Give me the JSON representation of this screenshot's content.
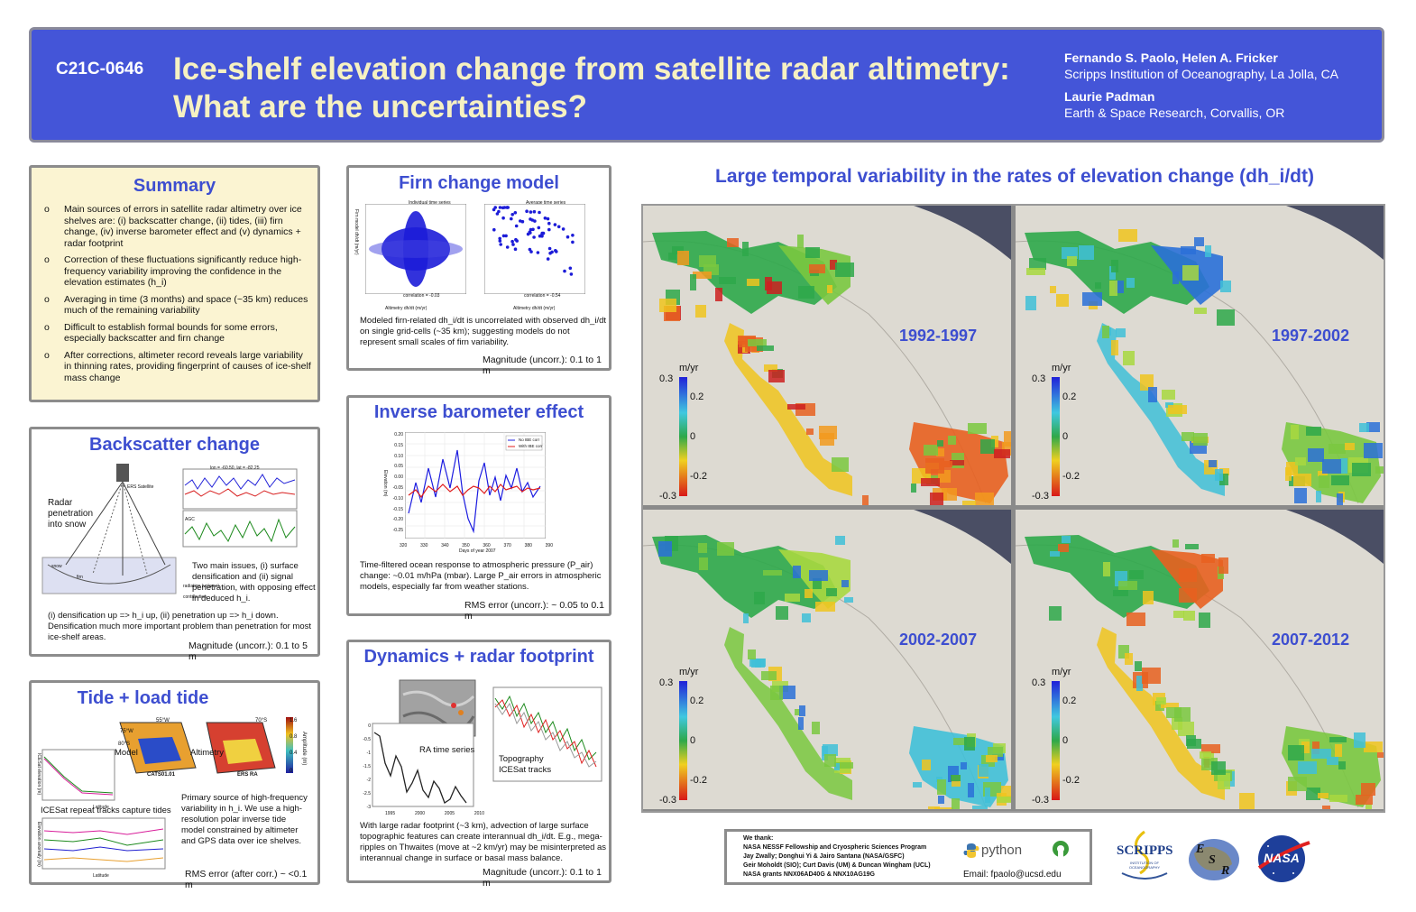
{
  "header": {
    "code": "C21C-0646",
    "title_line1": "Ice-shelf elevation change from satellite radar altimetry:",
    "title_line2": "What are the uncertainties?",
    "author1": "Fernando S. Paolo, Helen A. Fricker",
    "affil1": "Scripps Institution of Oceanography, La Jolla, CA",
    "author2": "Laurie Padman",
    "affil2": "Earth & Space Research, Corvallis, OR"
  },
  "summary": {
    "title": "Summary",
    "items": [
      "Main sources of errors in satellite radar altimetry over ice shelves are: (i) backscatter change, (ii) tides, (iii) firn change, (iv) inverse barometer effect and (v) dynamics + radar footprint",
      "Correction of these fluctuations significantly reduce high-frequency variability improving the confidence in the elevation estimates (h_i)",
      "Averaging in time (3 months) and space (~35 km) reduces much of the remaining variability",
      "Difficult to establish formal bounds for some errors, especially backscatter and firn change",
      "After corrections, altimeter record reveals large variability in thinning rates, providing fingerprint of causes of ice-shelf mass change"
    ]
  },
  "backscatter": {
    "title": "Backscatter change",
    "fig_labels": [
      "Radar",
      "penetration",
      "into snow",
      "ERS Satellite",
      "lon = -60.50, lat = -82.25",
      "AGC",
      "snow",
      "firn",
      "radiation (volume) contribution"
    ],
    "text1": "Two main issues, (i) surface densification and (ii) signal penetration, with opposing effect in deduced h_i.",
    "text2": "(i) densification up => h_i up, (ii) penetration up => h_i down. Densification much more important problem than penetration for most ice-shelf areas.",
    "magnitude": "Magnitude (uncorr.): 0.1 to 5 m"
  },
  "tide": {
    "title": "Tide + load tide",
    "fig_labels": [
      "Model",
      "Altimetry",
      "CATS01.01",
      "ERS RA",
      "55°W",
      "75°W",
      "80°S",
      "70°S",
      "Amplitude (m)",
      "ICESat elevation (m)",
      "Elevation anomaly (m)",
      "Latitude"
    ],
    "caption": "ICESat repeat tracks capture tides",
    "text": "Primary source of high-frequency variability in h_i. We use a high-resolution polar inverse tide model constrained by altimeter and GPS data over ice shelves.",
    "error": "RMS error (after corr.) ~ <0.1 m",
    "scale": [
      "1.6",
      "0.8",
      "0.4",
      "0"
    ]
  },
  "firn": {
    "title": "Firn change model",
    "left_title": "Individual time series",
    "right_title": "Average time series",
    "xlabel": "Altimetry dh/dt (m/yr)",
    "ylabel": "Firn model dh/dt (m/yr)",
    "corr_left": "correlation = -0.03",
    "corr_right": "correlation = -0.54",
    "text": "Modeled firn-related dh_i/dt is uncorrelated with observed dh_i/dt on single grid-cells (~35 km); suggesting models do not represent small scales of firn variability.",
    "magnitude": "Magnitude (uncorr.): 0.1 to 1 m"
  },
  "ib": {
    "title": "Inverse barometer effect",
    "legend": [
      "No IBE corr",
      "With IBE corr"
    ],
    "xlabel": "Days of year 2007",
    "ylabel": "Elevation (m)",
    "x_ticks": [
      "320",
      "330",
      "340",
      "350",
      "360",
      "370",
      "380",
      "390"
    ],
    "y_ticks": [
      "0.20",
      "0.15",
      "0.10",
      "0.05",
      "0.00",
      "-0.05",
      "-0.10",
      "-0.15",
      "-0.20",
      "-0.25"
    ],
    "text": "Time-filtered ocean response to atmospheric pressure (P_air) change: ~0.01 m/hPa (mbar). Large P_air errors in atmospheric models, especially far from weather stations.",
    "error": "RMS error (uncorr.): ~ 0.05 to 0.1 m"
  },
  "dynamics": {
    "title": "Dynamics + radar footprint",
    "label_ra": "RA time series",
    "label_topo": "Topography ICESat tracks",
    "x_ticks": [
      "1995",
      "2000",
      "2005",
      "2010"
    ],
    "y_ticks": [
      "0",
      "-0.5",
      "-1",
      "-1.5",
      "-2",
      "-2.5",
      "-3"
    ],
    "text": "With large radar footprint (~3 km), advection of large surface topographic features can create interannual dh_i/dt. E.g., mega-ripples on Thwaites (move at ~2 km/yr) may be misinterpreted as interannual change in surface or basal mass balance.",
    "magnitude": "Magnitude (uncorr.): 0.1 to 1 m"
  },
  "maps": {
    "title": "Large temporal variability in the rates of elevation change (dh_i/dt)",
    "periods": [
      "1992-1997",
      "1997-2002",
      "2002-2007",
      "2007-2012"
    ],
    "colorbar_unit": "m/yr",
    "colorbar_ticks": [
      "0.3",
      "0.2",
      "0",
      "-0.2",
      "-0.3"
    ]
  },
  "thanks": {
    "heading": "We thank:",
    "lines": [
      "NASA NESSF Fellowship and Cryospheric Sciences Program",
      "Jay Zwally; Donghui Yi & Jairo Santana (NASA/GSFC)",
      "Geir Moholdt (SIO); Curt Davis (UM) & Duncan Wingham (UCL)",
      "NASA grants NNX06AD40G & NNX10AG19G"
    ],
    "python": "python",
    "email": "Email: fpaolo@ucsd.edu"
  },
  "logos": {
    "scripps": "SCRIPPS",
    "scripps_sub": "INSTITUTION OF OCEANOGRAPHY",
    "esr_e": "E",
    "esr_s": "S",
    "esr_r": "R",
    "nasa": "NASA"
  }
}
